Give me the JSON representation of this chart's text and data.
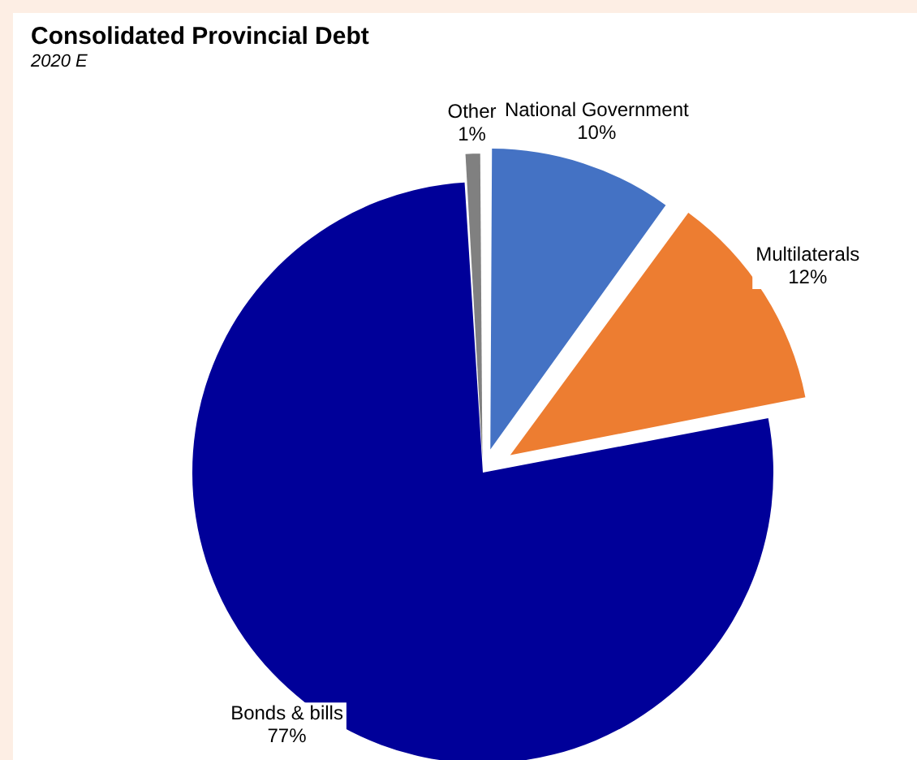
{
  "chart_data": {
    "type": "pie",
    "title": "Consolidated Provincial Debt",
    "subtitle": "2020 E",
    "categories": [
      "National Government",
      "Multilaterals",
      "Bonds & bills",
      "Other"
    ],
    "values": [
      10,
      12,
      77,
      1
    ],
    "colors": [
      "#4472c4",
      "#ed7d31",
      "#000099",
      "#808080"
    ],
    "value_labels": [
      "10%",
      "12%",
      "77%",
      "1%"
    ],
    "legend": false
  }
}
